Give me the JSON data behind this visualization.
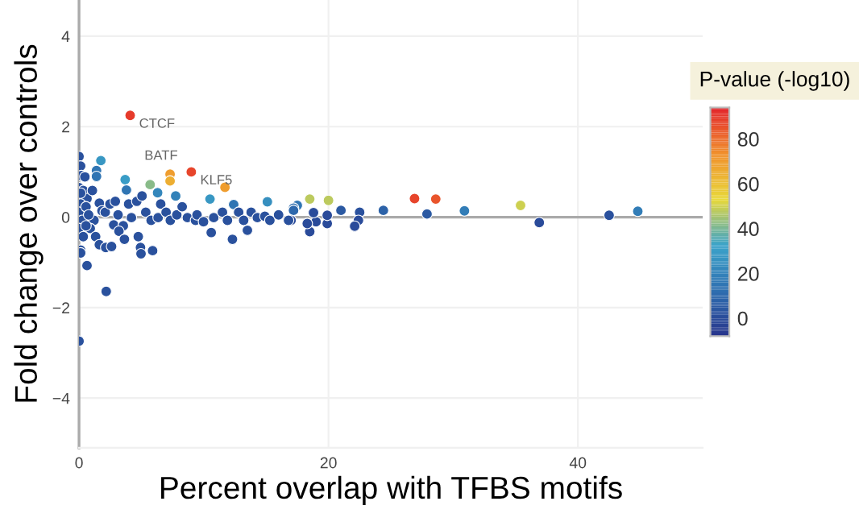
{
  "chart_data": {
    "type": "scatter",
    "xlabel": "Percent overlap with TFBS motifs",
    "ylabel": "Fold change over controls",
    "clabel": "P-value (-log10)",
    "clim": [
      -8,
      94
    ],
    "cticks": [
      0,
      20,
      40,
      60,
      80
    ],
    "xlim": [
      0,
      50
    ],
    "xticks": [
      0,
      20,
      40
    ],
    "ylim": [
      -5.1,
      4.8
    ],
    "yticks": [
      -4,
      -2,
      0,
      2,
      4
    ],
    "grid": true,
    "marker": "circle",
    "ref_lines": [
      {
        "axis": "y",
        "value": 0,
        "label": null,
        "color": "#aaaaaa"
      }
    ],
    "annotations": [
      {
        "text": "CTCF",
        "x": 4.1,
        "y": 2.25
      },
      {
        "text": "BATF",
        "x": 7.3,
        "y": 0.95
      },
      {
        "text": "KLF5",
        "x": 9.0,
        "y": 1.0
      }
    ],
    "series": [
      {
        "x": [
          4.1,
          7.3,
          7.3,
          9.0,
          11.7,
          18.5,
          20.0,
          26.9,
          28.6,
          35.4,
          1.75,
          1.4,
          1.4,
          3.7,
          3.8,
          5.7,
          6.3,
          7.75,
          10.5,
          12.4,
          15.1,
          17.5,
          17.2,
          30.9,
          44.8,
          36.9,
          42.5,
          27.9,
          24.4,
          22.5,
          22.4,
          22.1,
          21.0,
          19.9,
          19.9,
          19.0,
          18.8,
          18.5,
          18.3,
          17.2,
          17.0,
          0,
          0.13,
          0.2,
          0.47,
          0,
          0.34,
          0.64,
          0.13,
          0,
          0.26,
          0,
          0.34,
          0.13,
          0.13,
          0.64,
          0,
          2.18,
          1.07,
          1.63,
          1.84,
          1.2,
          0.9,
          1.33,
          1.63,
          2.14,
          2.61,
          2.1,
          2.48,
          2.91,
          3.13,
          2.78,
          3.55,
          3.98,
          4.2,
          4.75,
          4.93,
          4.97,
          5.9,
          4.63,
          5.05,
          5.35,
          5.78,
          6.34,
          6.55,
          6.98,
          7.32,
          7.84,
          8.27,
          8.69,
          9.34,
          9.46,
          9.98,
          10.6,
          10.8,
          11.5,
          11.9,
          12.3,
          12.8,
          13.2,
          13.5,
          13.8,
          14.3,
          14.9,
          15.3,
          16.0,
          16.8,
          3.2,
          3.64,
          0.56,
          0.77,
          0.56,
          0.13
        ],
        "values": [
          2.25,
          0.95,
          0.8,
          1.0,
          0.66,
          0.4,
          0.37,
          0.41,
          0.4,
          0.26,
          1.25,
          1.03,
          0.9,
          0.83,
          0.6,
          0.72,
          0.54,
          0.47,
          0.4,
          0.28,
          0.34,
          0.26,
          0.2,
          0.14,
          0.13,
          -0.12,
          0.04,
          0.07,
          0.15,
          0.11,
          -0.07,
          -0.2,
          0.15,
          -0.14,
          0.04,
          -0.1,
          0.1,
          -0.32,
          -0.14,
          0.15,
          -0.07,
          1.34,
          1.13,
          0.92,
          0.89,
          0.65,
          0.59,
          0.41,
          0.29,
          0.11,
          -0.07,
          -0.25,
          -0.43,
          -0.73,
          -0.79,
          -1.07,
          -2.74,
          -1.64,
          0.59,
          0.31,
          0.14,
          -0.07,
          -0.25,
          -0.43,
          -0.61,
          -0.67,
          -0.65,
          0.11,
          0.29,
          0.35,
          0.05,
          -0.17,
          -0.19,
          0.29,
          -0.01,
          -0.43,
          -0.67,
          -0.81,
          -0.74,
          0.35,
          0.47,
          0.11,
          -0.07,
          -0.01,
          0.29,
          0.11,
          -0.07,
          0.05,
          0.23,
          -0.01,
          -0.07,
          0.05,
          -0.1,
          -0.34,
          -0.01,
          0.11,
          -0.07,
          -0.49,
          0.11,
          -0.07,
          -0.29,
          0.11,
          -0.01,
          0.02,
          -0.07,
          0.05,
          -0.07,
          -0.31,
          -0.49,
          0.23,
          0.05,
          -0.19,
          0.53
        ],
        "cvalues": [
          90,
          70,
          65,
          88,
          70,
          48,
          48,
          88,
          85,
          50,
          28,
          15,
          15,
          30,
          15,
          42,
          22,
          20,
          28,
          15,
          25,
          15,
          12,
          18,
          18,
          0,
          2,
          5,
          8,
          2,
          0,
          0,
          5,
          0,
          0,
          0,
          0,
          0,
          0,
          10,
          0,
          2,
          2,
          2,
          2,
          2,
          2,
          2,
          2,
          2,
          2,
          2,
          2,
          2,
          2,
          2,
          2,
          2,
          2,
          2,
          2,
          2,
          2,
          2,
          2,
          2,
          2,
          2,
          2,
          2,
          2,
          2,
          2,
          2,
          2,
          2,
          2,
          2,
          2,
          2,
          2,
          2,
          2,
          2,
          2,
          2,
          2,
          2,
          2,
          2,
          2,
          2,
          2,
          2,
          2,
          2,
          2,
          2,
          2,
          2,
          2,
          2,
          2,
          2,
          2,
          2,
          2,
          2,
          2,
          2,
          2,
          2,
          2
        ]
      }
    ]
  }
}
